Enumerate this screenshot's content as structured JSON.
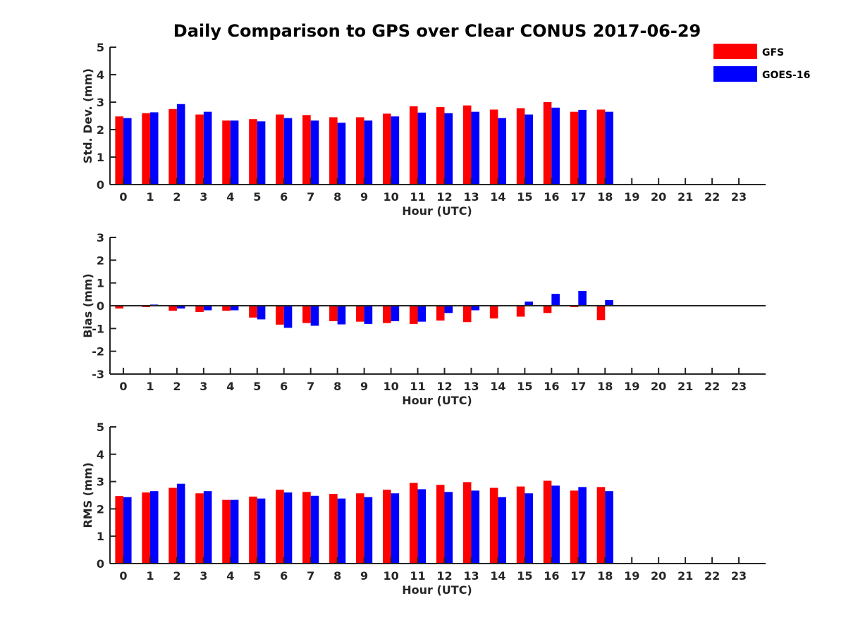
{
  "title": "Daily Comparison to GPS over Clear CONUS 2017-06-29",
  "legend": [
    {
      "label": "GFS",
      "color": "#ff0000"
    },
    {
      "label": "GOES-16",
      "color": "#0000ff"
    }
  ],
  "chart_data": [
    {
      "type": "bar",
      "ylabel": "Std. Dev. (mm)",
      "xlabel": "Hour (UTC)",
      "ylim": [
        0,
        5
      ],
      "yticks": [
        0,
        1,
        2,
        3,
        4,
        5
      ],
      "categories": [
        "0",
        "1",
        "2",
        "3",
        "4",
        "5",
        "6",
        "7",
        "8",
        "9",
        "10",
        "11",
        "12",
        "13",
        "14",
        "15",
        "16",
        "17",
        "18",
        "19",
        "20",
        "21",
        "22",
        "23"
      ],
      "series": [
        {
          "name": "GFS",
          "values": [
            2.48,
            2.6,
            2.75,
            2.55,
            2.33,
            2.38,
            2.55,
            2.53,
            2.45,
            2.45,
            2.58,
            2.85,
            2.82,
            2.88,
            2.73,
            2.78,
            3.0,
            2.65,
            2.73,
            null,
            null,
            null,
            null,
            null
          ]
        },
        {
          "name": "GOES-16",
          "values": [
            2.42,
            2.63,
            2.93,
            2.65,
            2.33,
            2.3,
            2.42,
            2.33,
            2.25,
            2.33,
            2.48,
            2.62,
            2.6,
            2.65,
            2.42,
            2.55,
            2.8,
            2.72,
            2.65,
            null,
            null,
            null,
            null,
            null
          ]
        }
      ]
    },
    {
      "type": "bar",
      "ylabel": "Bias (mm)",
      "xlabel": "Hour (UTC)",
      "ylim": [
        -3,
        3
      ],
      "yticks": [
        -3,
        -2,
        -1,
        0,
        1,
        2,
        3
      ],
      "categories": [
        "0",
        "1",
        "2",
        "3",
        "4",
        "5",
        "6",
        "7",
        "8",
        "9",
        "10",
        "11",
        "12",
        "13",
        "14",
        "15",
        "16",
        "17",
        "18",
        "19",
        "20",
        "21",
        "22",
        "23"
      ],
      "series": [
        {
          "name": "GFS",
          "values": [
            -0.12,
            -0.06,
            -0.22,
            -0.28,
            -0.22,
            -0.52,
            -0.83,
            -0.76,
            -0.68,
            -0.7,
            -0.76,
            -0.8,
            -0.65,
            -0.72,
            -0.56,
            -0.48,
            -0.32,
            -0.06,
            -0.63,
            null,
            null,
            null,
            null,
            null
          ]
        },
        {
          "name": "GOES-16",
          "values": [
            0.01,
            0.05,
            -0.12,
            -0.2,
            -0.2,
            -0.6,
            -0.97,
            -0.88,
            -0.82,
            -0.8,
            -0.68,
            -0.7,
            -0.32,
            -0.2,
            0.02,
            0.18,
            0.52,
            0.65,
            0.25,
            null,
            null,
            null,
            null,
            null
          ]
        }
      ]
    },
    {
      "type": "bar",
      "ylabel": "RMS (mm)",
      "xlabel": "Hour (UTC)",
      "ylim": [
        0,
        5
      ],
      "yticks": [
        0,
        1,
        2,
        3,
        4,
        5
      ],
      "categories": [
        "0",
        "1",
        "2",
        "3",
        "4",
        "5",
        "6",
        "7",
        "8",
        "9",
        "10",
        "11",
        "12",
        "13",
        "14",
        "15",
        "16",
        "17",
        "18",
        "19",
        "20",
        "21",
        "22",
        "23"
      ],
      "series": [
        {
          "name": "GFS",
          "values": [
            2.47,
            2.6,
            2.77,
            2.57,
            2.33,
            2.45,
            2.7,
            2.62,
            2.55,
            2.57,
            2.7,
            2.95,
            2.88,
            2.98,
            2.77,
            2.82,
            3.03,
            2.67,
            2.8,
            null,
            null,
            null,
            null,
            null
          ]
        },
        {
          "name": "GOES-16",
          "values": [
            2.43,
            2.65,
            2.92,
            2.65,
            2.33,
            2.38,
            2.6,
            2.48,
            2.38,
            2.43,
            2.57,
            2.72,
            2.62,
            2.67,
            2.43,
            2.57,
            2.85,
            2.8,
            2.65,
            null,
            null,
            null,
            null,
            null
          ]
        }
      ]
    }
  ]
}
